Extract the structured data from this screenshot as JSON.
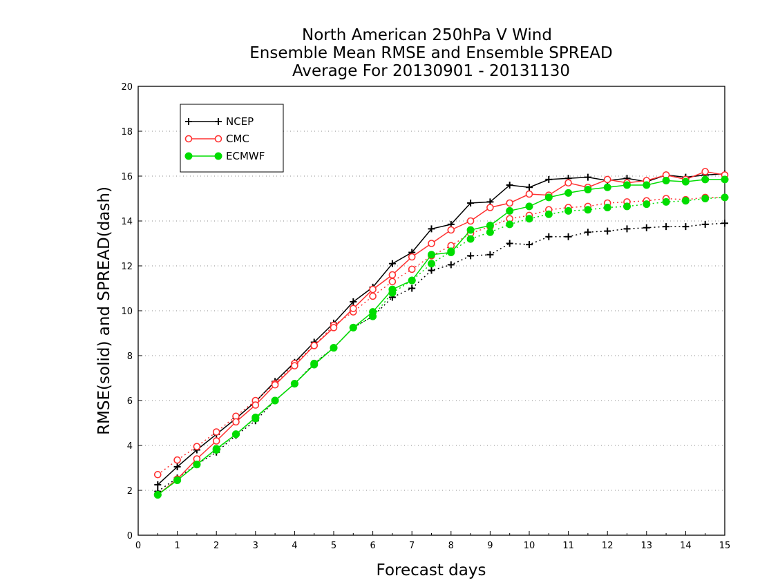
{
  "chart_data": {
    "type": "line",
    "title": [
      "North American 250hPa V Wind",
      "Ensemble Mean RMSE and Ensemble SPREAD",
      "Average For 20130901 - 20131130"
    ],
    "xlabel": "Forecast days",
    "ylabel": "RMSE(solid) and SPREAD(dash)",
    "xlim": [
      0,
      15
    ],
    "ylim": [
      0,
      20
    ],
    "x_ticks": [
      0,
      1,
      2,
      3,
      4,
      5,
      6,
      7,
      8,
      9,
      10,
      11,
      12,
      13,
      14,
      15
    ],
    "y_ticks": [
      0,
      2,
      4,
      6,
      8,
      10,
      12,
      14,
      16,
      18,
      20
    ],
    "grid": "horizontal dotted",
    "legend_position": "top-left",
    "x": [
      0.5,
      1,
      1.5,
      2,
      2.5,
      3,
      3.5,
      4,
      4.5,
      5,
      5.5,
      6,
      6.5,
      7,
      7.5,
      8,
      8.5,
      9,
      9.5,
      10,
      10.5,
      11,
      11.5,
      12,
      12.5,
      13,
      13.5,
      14,
      14.5,
      15
    ],
    "series": [
      {
        "name": "NCEP",
        "color": "#000000",
        "marker": "plus",
        "rmse": [
          2.25,
          3.05,
          3.8,
          4.5,
          5.2,
          5.95,
          6.85,
          7.7,
          8.6,
          9.45,
          10.4,
          11.05,
          12.1,
          12.6,
          13.65,
          13.85,
          14.8,
          14.85,
          15.6,
          15.5,
          15.85,
          15.9,
          15.95,
          15.8,
          15.9,
          15.75,
          16.05,
          15.95,
          16.05,
          16.1
        ],
        "spread": [
          1.95,
          2.55,
          3.15,
          3.7,
          4.45,
          5.1,
          6.0,
          6.75,
          7.65,
          8.35,
          9.25,
          9.75,
          10.6,
          11.0,
          11.8,
          12.05,
          12.45,
          12.5,
          13.0,
          12.95,
          13.3,
          13.3,
          13.5,
          13.55,
          13.65,
          13.7,
          13.75,
          13.75,
          13.85,
          13.9
        ]
      },
      {
        "name": "CMC",
        "color": "#ff3030",
        "marker": "open-circle",
        "rmse": [
          1.8,
          2.5,
          3.4,
          4.2,
          5.05,
          5.8,
          6.7,
          7.55,
          8.45,
          9.25,
          10.1,
          10.95,
          11.6,
          12.4,
          13.0,
          13.6,
          14.0,
          14.6,
          14.8,
          15.2,
          15.15,
          15.7,
          15.5,
          15.85,
          15.7,
          15.8,
          16.05,
          15.85,
          16.2,
          16.05
        ],
        "spread": [
          2.7,
          3.35,
          3.95,
          4.6,
          5.3,
          6.0,
          6.75,
          7.65,
          8.45,
          9.35,
          9.95,
          10.65,
          11.3,
          11.85,
          12.45,
          12.9,
          13.45,
          13.75,
          14.1,
          14.25,
          14.5,
          14.6,
          14.65,
          14.8,
          14.85,
          14.9,
          15.0,
          14.95,
          15.05,
          15.05
        ]
      },
      {
        "name": "ECMWF",
        "color": "#00dd00",
        "marker": "filled-circle",
        "rmse": [
          1.8,
          2.45,
          3.15,
          3.85,
          4.5,
          5.25,
          6.0,
          6.75,
          7.6,
          8.35,
          9.25,
          9.95,
          10.95,
          11.35,
          12.5,
          12.6,
          13.6,
          13.8,
          14.45,
          14.65,
          15.05,
          15.25,
          15.4,
          15.5,
          15.6,
          15.6,
          15.8,
          15.75,
          15.85,
          15.85
        ],
        "spread": [
          1.8,
          2.45,
          3.15,
          3.8,
          4.5,
          5.2,
          6.0,
          6.75,
          7.65,
          8.35,
          9.25,
          9.75,
          10.8,
          11.35,
          12.1,
          12.65,
          13.2,
          13.5,
          13.85,
          14.1,
          14.3,
          14.45,
          14.5,
          14.6,
          14.65,
          14.75,
          14.85,
          14.9,
          15.0,
          15.05
        ]
      }
    ]
  }
}
